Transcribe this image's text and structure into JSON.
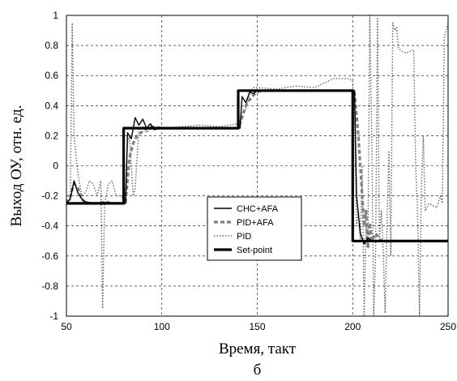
{
  "chart_data": {
    "type": "line",
    "title": "",
    "xlabel": "Время, такт",
    "ylabel": "Выход ОУ, отн. ед.",
    "caption": "б",
    "xlim": [
      50,
      250
    ],
    "ylim": [
      -1,
      1
    ],
    "xticks": [
      "50",
      "100",
      "150",
      "200",
      "250"
    ],
    "yticks": [
      "-1",
      "-0.8",
      "-0.6",
      "-0.4",
      "-0.2",
      "0",
      "0.2",
      "0.4",
      "0.6",
      "0.8",
      "1"
    ],
    "grid": true,
    "legend_position": "center-bottom",
    "series": [
      {
        "name": "CHC+AFA",
        "style": "solid-thin",
        "color": "#000000",
        "points": [
          [
            50,
            -0.25
          ],
          [
            52,
            -0.22
          ],
          [
            54,
            -0.1
          ],
          [
            56,
            -0.18
          ],
          [
            58,
            -0.22
          ],
          [
            60,
            -0.24
          ],
          [
            65,
            -0.25
          ],
          [
            70,
            -0.25
          ],
          [
            75,
            -0.25
          ],
          [
            80,
            -0.25
          ],
          [
            81,
            -0.25
          ],
          [
            82,
            0.22
          ],
          [
            84,
            0.18
          ],
          [
            86,
            0.32
          ],
          [
            88,
            0.27
          ],
          [
            90,
            0.31
          ],
          [
            92,
            0.25
          ],
          [
            94,
            0.28
          ],
          [
            96,
            0.24
          ],
          [
            100,
            0.25
          ],
          [
            110,
            0.25
          ],
          [
            120,
            0.25
          ],
          [
            130,
            0.25
          ],
          [
            140,
            0.25
          ],
          [
            141,
            0.25
          ],
          [
            142,
            0.46
          ],
          [
            144,
            0.42
          ],
          [
            146,
            0.49
          ],
          [
            148,
            0.48
          ],
          [
            150,
            0.5
          ],
          [
            160,
            0.5
          ],
          [
            170,
            0.5
          ],
          [
            180,
            0.5
          ],
          [
            190,
            0.5
          ],
          [
            200,
            0.5
          ],
          [
            201,
            0.5
          ],
          [
            202,
            -0.2
          ],
          [
            204,
            -0.45
          ],
          [
            206,
            -0.52
          ],
          [
            208,
            -0.48
          ],
          [
            210,
            -0.5
          ],
          [
            220,
            -0.5
          ],
          [
            250,
            -0.5
          ]
        ]
      },
      {
        "name": "PID+AFA",
        "style": "dashed-thick",
        "color": "#808080",
        "points": [
          [
            50,
            -0.25
          ],
          [
            52,
            -0.2
          ],
          [
            54,
            -0.12
          ],
          [
            56,
            -0.15
          ],
          [
            58,
            -0.22
          ],
          [
            60,
            -0.25
          ],
          [
            65,
            -0.25
          ],
          [
            70,
            -0.24
          ],
          [
            75,
            -0.25
          ],
          [
            80,
            -0.25
          ],
          [
            81,
            -0.24
          ],
          [
            83,
            0.05
          ],
          [
            85,
            0.15
          ],
          [
            87,
            0.2
          ],
          [
            89,
            0.22
          ],
          [
            91,
            0.24
          ],
          [
            93,
            0.25
          ],
          [
            95,
            0.26
          ],
          [
            100,
            0.25
          ],
          [
            110,
            0.25
          ],
          [
            120,
            0.25
          ],
          [
            130,
            0.25
          ],
          [
            140,
            0.25
          ],
          [
            142,
            0.32
          ],
          [
            144,
            0.4
          ],
          [
            146,
            0.44
          ],
          [
            148,
            0.47
          ],
          [
            150,
            0.49
          ],
          [
            152,
            0.5
          ],
          [
            160,
            0.5
          ],
          [
            170,
            0.5
          ],
          [
            180,
            0.5
          ],
          [
            190,
            0.5
          ],
          [
            200,
            0.5
          ],
          [
            201,
            0.48
          ],
          [
            203,
            0.2
          ],
          [
            205,
            -0.2
          ],
          [
            206,
            -0.4
          ],
          [
            207,
            -0.3
          ],
          [
            208,
            -0.55
          ],
          [
            209,
            -0.38
          ],
          [
            210,
            -0.5
          ],
          [
            212,
            -0.45
          ],
          [
            215,
            -0.5
          ],
          [
            250,
            -0.5
          ]
        ]
      },
      {
        "name": "PID",
        "style": "dotted",
        "color": "#666666",
        "points": [
          [
            52,
            -0.25
          ],
          [
            53,
            0.95
          ],
          [
            54,
            0.2
          ],
          [
            56,
            -0.05
          ],
          [
            58,
            -0.2
          ],
          [
            60,
            -0.18
          ],
          [
            62,
            -0.1
          ],
          [
            64,
            -0.12
          ],
          [
            66,
            -0.2
          ],
          [
            68,
            -0.1
          ],
          [
            69,
            -0.95
          ],
          [
            70,
            -0.25
          ],
          [
            72,
            -0.12
          ],
          [
            74,
            -0.1
          ],
          [
            76,
            -0.2
          ],
          [
            78,
            -0.2
          ],
          [
            80,
            -0.22
          ],
          [
            81,
            -0.15
          ],
          [
            82,
            0.15
          ],
          [
            83,
            0.2
          ],
          [
            85,
            -0.2
          ],
          [
            86,
            -0.15
          ],
          [
            88,
            0.25
          ],
          [
            90,
            0.26
          ],
          [
            92,
            0.22
          ],
          [
            95,
            0.26
          ],
          [
            100,
            0.25
          ],
          [
            110,
            0.26
          ],
          [
            120,
            0.27
          ],
          [
            130,
            0.26
          ],
          [
            140,
            0.28
          ],
          [
            141,
            0.3
          ],
          [
            142,
            0.35
          ],
          [
            144,
            0.38
          ],
          [
            146,
            0.48
          ],
          [
            148,
            0.52
          ],
          [
            150,
            0.52
          ],
          [
            160,
            0.51
          ],
          [
            170,
            0.53
          ],
          [
            180,
            0.52
          ],
          [
            190,
            0.58
          ],
          [
            195,
            0.58
          ],
          [
            198,
            0.58
          ],
          [
            200,
            0.56
          ],
          [
            201,
            0.3
          ],
          [
            202,
            -0.4
          ],
          [
            203,
            -0.3
          ],
          [
            204,
            -0.5
          ],
          [
            205,
            0.0
          ],
          [
            206,
            -1.0
          ],
          [
            207,
            -0.4
          ],
          [
            208,
            -0.5
          ],
          [
            209,
            1.0
          ],
          [
            210,
            0.2
          ],
          [
            211,
            -1.0
          ],
          [
            212,
            -0.6
          ],
          [
            213,
            0.98
          ],
          [
            214,
            -0.5
          ],
          [
            215,
            -0.3
          ],
          [
            216,
            -0.55
          ],
          [
            217,
            -0.98
          ],
          [
            218,
            -0.4
          ],
          [
            219,
            0.1
          ],
          [
            220,
            -0.6
          ],
          [
            221,
            0.95
          ],
          [
            222,
            0.9
          ],
          [
            223,
            0.92
          ],
          [
            224,
            0.78
          ],
          [
            226,
            0.76
          ],
          [
            228,
            0.75
          ],
          [
            230,
            0.76
          ],
          [
            232,
            0.77
          ],
          [
            233,
            0.0
          ],
          [
            234,
            -0.3
          ],
          [
            235,
            -1.0
          ],
          [
            236,
            -0.15
          ],
          [
            237,
            0.2
          ],
          [
            238,
            -0.3
          ],
          [
            240,
            -0.25
          ],
          [
            244,
            -0.28
          ],
          [
            246,
            -0.2
          ],
          [
            247,
            -0.25
          ],
          [
            248,
            0.85
          ],
          [
            249,
            0.9
          ],
          [
            250,
            0.95
          ]
        ]
      },
      {
        "name": "Set-point",
        "style": "solid-thick",
        "color": "#000000",
        "points": [
          [
            50,
            -0.25
          ],
          [
            80,
            -0.25
          ],
          [
            80,
            0.25
          ],
          [
            140,
            0.25
          ],
          [
            140,
            0.5
          ],
          [
            200,
            0.5
          ],
          [
            200,
            -0.5
          ],
          [
            250,
            -0.5
          ]
        ]
      }
    ]
  }
}
